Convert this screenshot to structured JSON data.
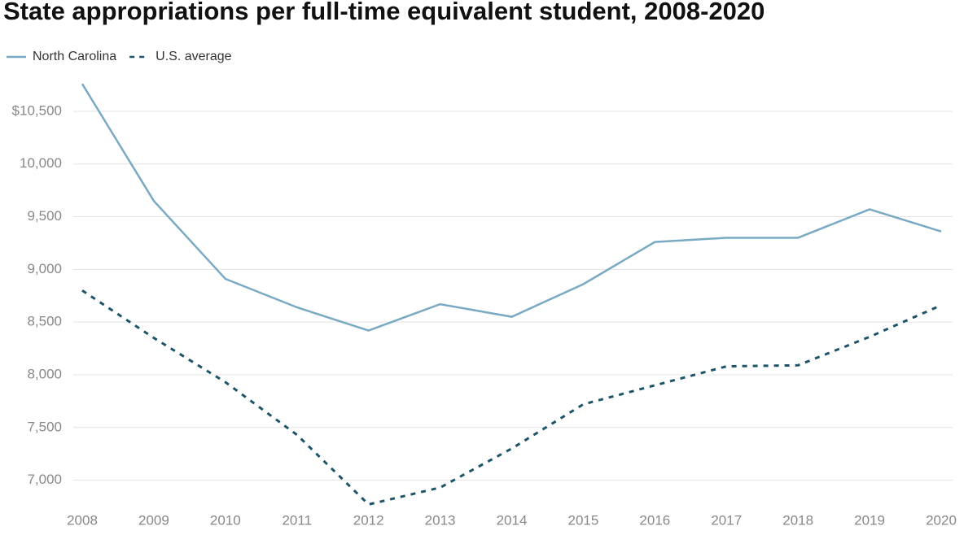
{
  "chart_data": {
    "type": "line",
    "title": "State appropriations per full-time equivalent student, 2008-2020",
    "x": [
      2008,
      2009,
      2010,
      2011,
      2012,
      2013,
      2014,
      2015,
      2016,
      2017,
      2018,
      2019,
      2020
    ],
    "series": [
      {
        "name": "North Carolina",
        "color": "#7aa9c3",
        "dash": false,
        "values": [
          10760,
          9650,
          8910,
          8640,
          8420,
          8670,
          8550,
          8860,
          9260,
          9300,
          9300,
          9570,
          9360
        ]
      },
      {
        "name": "U.S. average",
        "color": "#1d5468",
        "dash": true,
        "values": [
          8800,
          8350,
          7930,
          7430,
          6770,
          6930,
          7300,
          7720,
          7900,
          8080,
          8090,
          8360,
          8660
        ]
      }
    ],
    "xlim": [
      2008,
      2020
    ],
    "xticks": [
      2008,
      2009,
      2010,
      2011,
      2012,
      2013,
      2014,
      2015,
      2016,
      2017,
      2018,
      2019,
      2020
    ],
    "ylim": [
      6750,
      10800
    ],
    "yticks": [
      {
        "value": 7000,
        "label": "7,000"
      },
      {
        "value": 7500,
        "label": "7,500"
      },
      {
        "value": 8000,
        "label": "8,000"
      },
      {
        "value": 8500,
        "label": "8,500"
      },
      {
        "value": 9000,
        "label": "9,000"
      },
      {
        "value": 9500,
        "label": "9,500"
      },
      {
        "value": 10000,
        "label": "10,000"
      },
      {
        "value": 10500,
        "label": "$10,500"
      }
    ],
    "grid": true
  }
}
